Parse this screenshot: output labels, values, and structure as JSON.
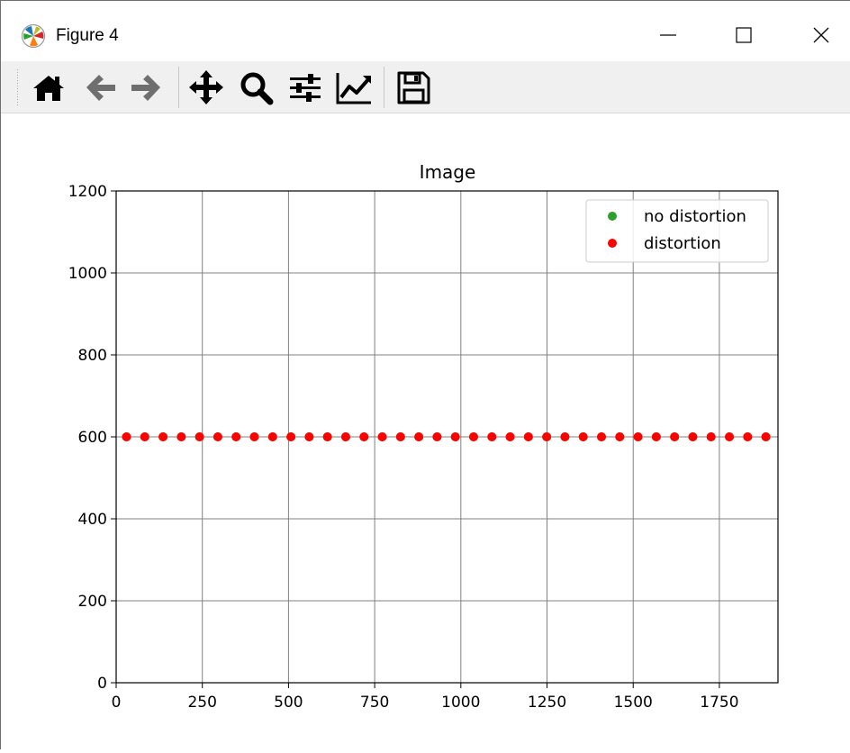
{
  "window": {
    "title": "Figure 4",
    "buttons": {
      "minimize": "minimize-icon",
      "maximize": "maximize-icon",
      "close": "close-icon"
    }
  },
  "toolbar": {
    "icons": [
      "home-icon",
      "back-arrow-icon",
      "forward-arrow-icon",
      "pan-move-icon",
      "zoom-icon",
      "configure-subplots-icon",
      "edit-axis-icon",
      "save-icon"
    ]
  },
  "colors": {
    "no_distortion": "#2ca02c",
    "distortion": "#ff0000",
    "grid": "#808080"
  },
  "chart_data": {
    "type": "scatter",
    "title": "Image",
    "xlabel": "",
    "ylabel": "",
    "xlim": [
      0,
      1920
    ],
    "ylim": [
      0,
      1200
    ],
    "xticks": [
      0,
      250,
      500,
      750,
      1000,
      1250,
      1500,
      1750
    ],
    "yticks": [
      0,
      200,
      400,
      600,
      800,
      1000,
      1200
    ],
    "grid": true,
    "legend_position": "top-right",
    "series": [
      {
        "name": "no distortion",
        "color": "#2ca02c",
        "x": [
          30,
          83,
          136,
          189,
          242,
          295,
          348,
          401,
          454,
          507,
          560,
          613,
          666,
          719,
          772,
          825,
          878,
          931,
          984,
          1037,
          1090,
          1143,
          1196,
          1249,
          1302,
          1355,
          1408,
          1461,
          1514,
          1567,
          1620,
          1673,
          1726,
          1779,
          1832,
          1885
        ],
        "y": [
          600,
          600,
          600,
          600,
          600,
          600,
          600,
          600,
          600,
          600,
          600,
          600,
          600,
          600,
          600,
          600,
          600,
          600,
          600,
          600,
          600,
          600,
          600,
          600,
          600,
          600,
          600,
          600,
          600,
          600,
          600,
          600,
          600,
          600,
          600,
          600
        ]
      },
      {
        "name": "distortion",
        "color": "#ff0000",
        "x": [
          30,
          83,
          136,
          189,
          242,
          295,
          348,
          401,
          454,
          507,
          560,
          613,
          666,
          719,
          772,
          825,
          878,
          931,
          984,
          1037,
          1090,
          1143,
          1196,
          1249,
          1302,
          1355,
          1408,
          1461,
          1514,
          1567,
          1620,
          1673,
          1726,
          1779,
          1832,
          1885
        ],
        "y": [
          600,
          600,
          600,
          600,
          600,
          600,
          600,
          600,
          600,
          600,
          600,
          600,
          600,
          600,
          600,
          600,
          600,
          600,
          600,
          600,
          600,
          600,
          600,
          600,
          600,
          600,
          600,
          600,
          600,
          600,
          600,
          600,
          600,
          600,
          600,
          600
        ]
      }
    ]
  }
}
